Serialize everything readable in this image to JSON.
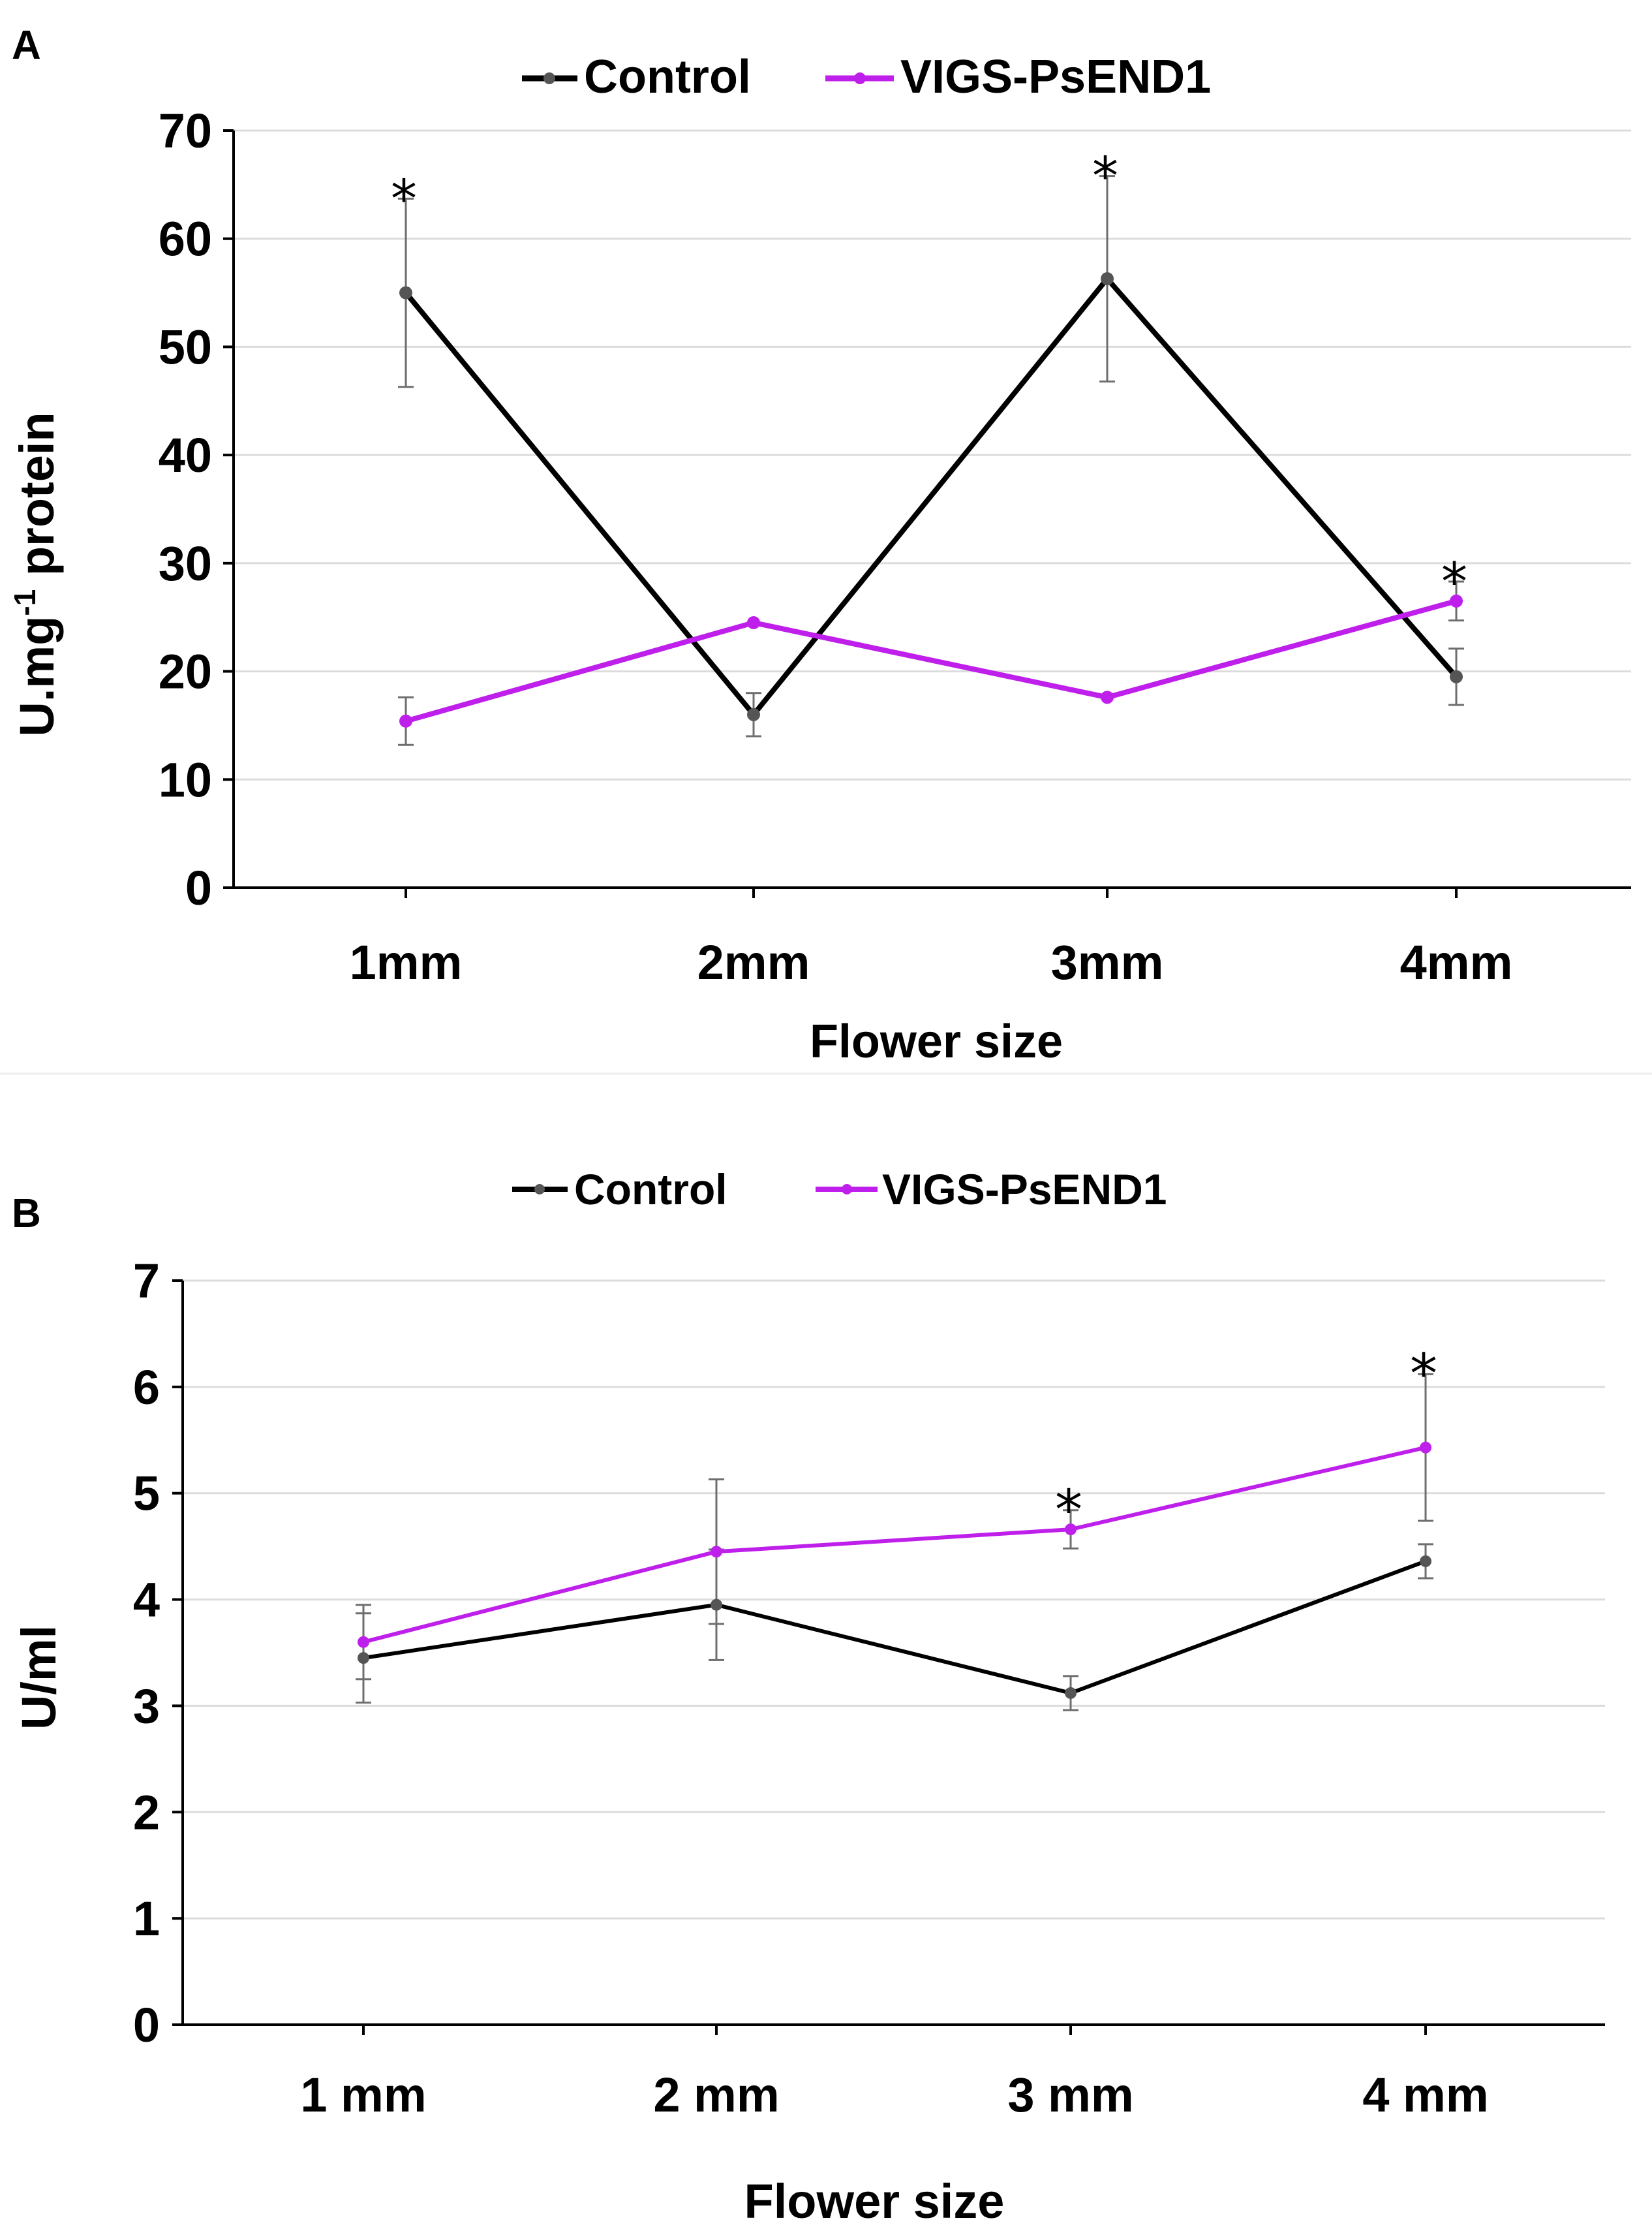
{
  "chart_data": [
    {
      "panel": "A",
      "type": "line",
      "categories": [
        "1mm",
        "2mm",
        "3mm",
        "4mm"
      ],
      "xlabel": "Flower size",
      "ylabel_main": "U.mg",
      "ylabel_sup": "-1",
      "ylabel_tail": " protein",
      "ylim": [
        0,
        70
      ],
      "yticks": [
        0,
        10,
        20,
        30,
        40,
        50,
        60,
        70
      ],
      "grid": true,
      "legend_position": "top-center",
      "series": [
        {
          "name": "Control",
          "color": "#000000",
          "marker_color": "#555555",
          "values": [
            55,
            16,
            56.3,
            19.5
          ],
          "errors": [
            8.7,
            2,
            9.5,
            2.6
          ]
        },
        {
          "name": "VIGS-PsEND1",
          "color": "#BF1FEA",
          "marker_color": "#BF1FEA",
          "values": [
            15.4,
            24.5,
            17.6,
            26.5
          ],
          "errors": [
            2.2,
            0,
            0,
            1.8
          ]
        }
      ],
      "significance": [
        {
          "category": "1mm",
          "label": "*"
        },
        {
          "category": "3mm",
          "label": "*"
        },
        {
          "category": "4mm",
          "label": "*"
        }
      ]
    },
    {
      "panel": "B",
      "type": "line",
      "categories": [
        "1 mm",
        "2 mm",
        "3 mm",
        "4 mm"
      ],
      "xlabel": "Flower size",
      "ylabel": "U/ml",
      "ylim": [
        0,
        7
      ],
      "yticks": [
        0,
        1,
        2,
        3,
        4,
        5,
        6,
        7
      ],
      "grid": true,
      "legend_position": "top-center",
      "series": [
        {
          "name": "Control",
          "color": "#000000",
          "marker_color": "#555555",
          "values": [
            3.45,
            3.95,
            3.12,
            4.36
          ],
          "errors": [
            0.42,
            0.52,
            0.16,
            0.16
          ]
        },
        {
          "name": "VIGS-PsEND1",
          "color": "#BF1FEA",
          "marker_color": "#BF1FEA",
          "values": [
            3.6,
            4.45,
            4.66,
            5.43
          ],
          "errors": [
            0.35,
            0.68,
            0.18,
            0.69
          ]
        }
      ],
      "significance": [
        {
          "category": "3 mm",
          "label": "*"
        },
        {
          "category": "4 mm",
          "label": "*"
        }
      ]
    }
  ]
}
